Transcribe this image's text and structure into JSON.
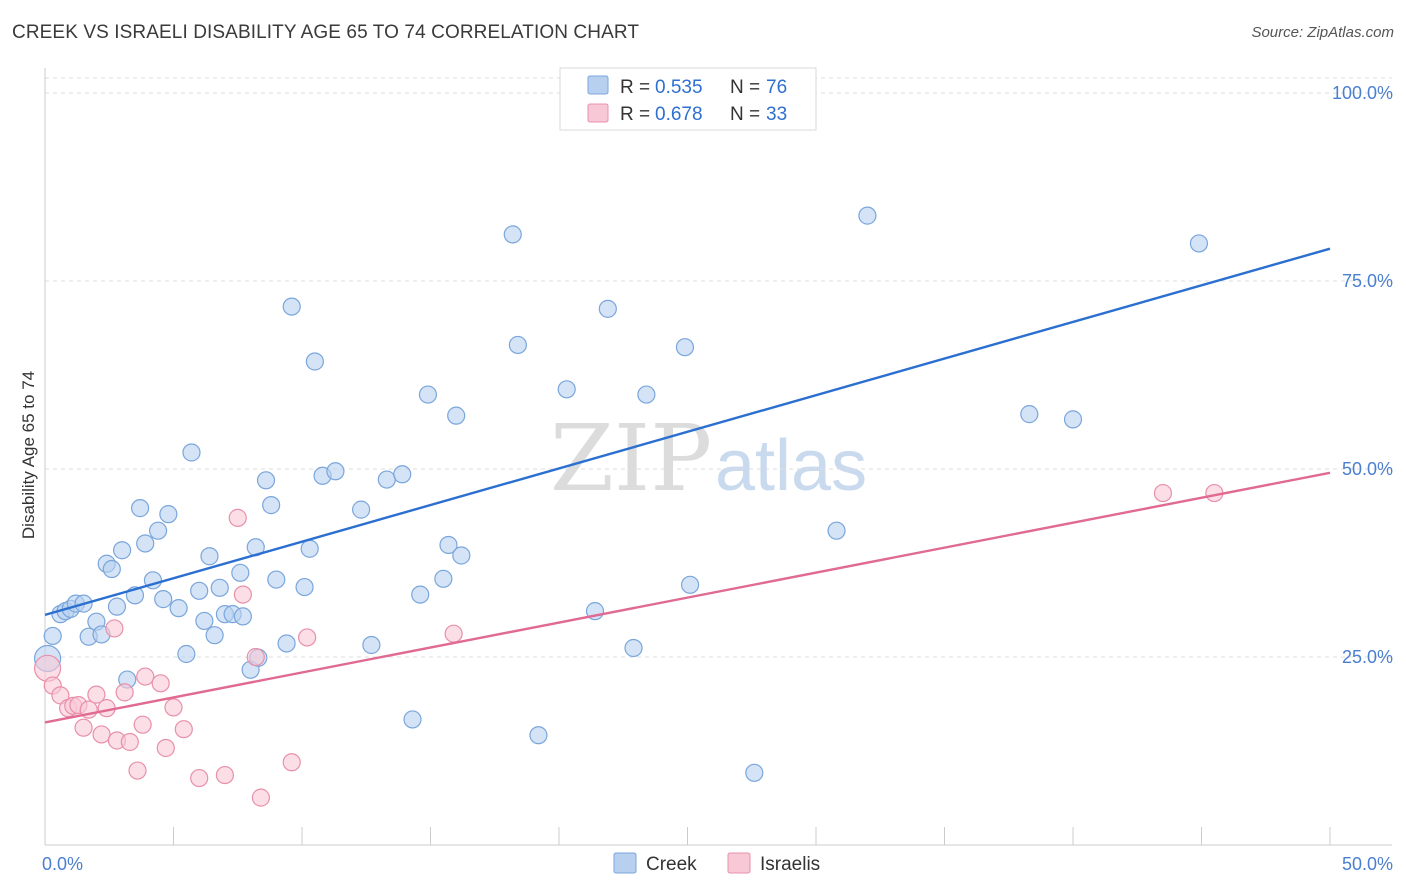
{
  "title": "CREEK VS ISRAELI DISABILITY AGE 65 TO 74 CORRELATION CHART",
  "source": "Source: ZipAtlas.com",
  "watermark": {
    "part1": "ZIP",
    "part2": "atlas"
  },
  "colors": {
    "creek_fill": "#b8d0f0",
    "creek_stroke": "#7aa6dc",
    "creek_line": "#2b6fd0",
    "israelis_fill": "#f8c8d6",
    "israelis_stroke": "#e890aa",
    "israelis_line": "#e06a92",
    "grid": "#dddddd",
    "tick_text": "#4a7fd0"
  },
  "legend": {
    "rows": [
      {
        "r_label": "R = ",
        "r_value": "0.535",
        "n_label": "N = ",
        "n_value": "76",
        "series": "Creek"
      },
      {
        "r_label": "R = ",
        "r_value": "0.678",
        "n_label": "N = ",
        "n_value": "33",
        "series": "Israelis"
      }
    ]
  },
  "chart_data": {
    "type": "scatter",
    "title": "CREEK VS ISRAELI DISABILITY AGE 65 TO 74 CORRELATION CHART",
    "xlabel": "",
    "ylabel": "Disability Age 65 to 74",
    "xlim": [
      0,
      50
    ],
    "ylim": [
      0,
      102
    ],
    "x_tick_labels": [
      "0.0%",
      "50.0%"
    ],
    "y_ticks": [
      25,
      50,
      75,
      100
    ],
    "y_tick_labels": [
      "25.0%",
      "50.0%",
      "75.0%",
      "100.0%"
    ],
    "legend_position": "top-center",
    "bottom_legend": [
      "Creek",
      "Israelis"
    ],
    "series": [
      {
        "name": "Creek",
        "trendline": {
          "x": [
            0,
            50
          ],
          "y": [
            30.6,
            79.3
          ]
        },
        "points": [
          [
            0.1,
            24.8
          ],
          [
            0.3,
            27.8
          ],
          [
            0.6,
            30.7
          ],
          [
            0.8,
            31.1
          ],
          [
            1.0,
            31.4
          ],
          [
            1.2,
            32.1
          ],
          [
            1.5,
            32.1
          ],
          [
            1.7,
            27.7
          ],
          [
            2.0,
            29.7
          ],
          [
            2.2,
            28.0
          ],
          [
            2.4,
            37.4
          ],
          [
            2.6,
            36.7
          ],
          [
            2.8,
            31.7
          ],
          [
            3.0,
            39.2
          ],
          [
            3.2,
            22.0
          ],
          [
            3.5,
            33.2
          ],
          [
            3.7,
            44.8
          ],
          [
            3.9,
            40.1
          ],
          [
            4.2,
            35.2
          ],
          [
            4.4,
            41.8
          ],
          [
            4.6,
            32.7
          ],
          [
            4.8,
            44.0
          ],
          [
            5.2,
            31.5
          ],
          [
            5.5,
            25.4
          ],
          [
            5.7,
            52.2
          ],
          [
            6.0,
            33.8
          ],
          [
            6.2,
            29.8
          ],
          [
            6.4,
            38.4
          ],
          [
            6.6,
            27.9
          ],
          [
            6.8,
            34.2
          ],
          [
            7.0,
            30.7
          ],
          [
            7.3,
            30.7
          ],
          [
            7.6,
            36.2
          ],
          [
            7.7,
            30.4
          ],
          [
            8.0,
            23.3
          ],
          [
            8.2,
            39.6
          ],
          [
            8.3,
            24.9
          ],
          [
            8.6,
            48.5
          ],
          [
            8.8,
            45.2
          ],
          [
            9.0,
            35.3
          ],
          [
            9.4,
            26.8
          ],
          [
            9.6,
            71.6
          ],
          [
            10.1,
            34.3
          ],
          [
            10.3,
            39.4
          ],
          [
            10.5,
            64.3
          ],
          [
            10.8,
            49.1
          ],
          [
            11.3,
            49.7
          ],
          [
            12.3,
            44.6
          ],
          [
            12.7,
            26.6
          ],
          [
            13.3,
            48.6
          ],
          [
            13.9,
            49.3
          ],
          [
            14.3,
            16.7
          ],
          [
            14.6,
            33.3
          ],
          [
            14.9,
            59.9
          ],
          [
            15.5,
            35.4
          ],
          [
            15.7,
            39.9
          ],
          [
            16.0,
            57.1
          ],
          [
            16.2,
            38.5
          ],
          [
            18.2,
            81.2
          ],
          [
            18.4,
            66.5
          ],
          [
            19.2,
            14.6
          ],
          [
            20.3,
            60.6
          ],
          [
            21.4,
            31.1
          ],
          [
            21.9,
            71.3
          ],
          [
            22.9,
            26.2
          ],
          [
            23.0,
            100.0
          ],
          [
            23.4,
            59.9
          ],
          [
            24.9,
            66.2
          ],
          [
            25.1,
            34.6
          ],
          [
            27.6,
            9.6
          ],
          [
            29.0,
            100.0
          ],
          [
            30.8,
            41.8
          ],
          [
            32.0,
            83.7
          ],
          [
            38.3,
            57.3
          ],
          [
            40.0,
            56.6
          ],
          [
            44.9,
            80.0
          ]
        ]
      },
      {
        "name": "Israelis",
        "trendline": {
          "x": [
            0,
            50
          ],
          "y": [
            16.3,
            49.5
          ]
        },
        "points": [
          [
            0.1,
            23.5
          ],
          [
            0.3,
            21.2
          ],
          [
            0.6,
            19.9
          ],
          [
            0.9,
            18.2
          ],
          [
            1.1,
            18.5
          ],
          [
            1.3,
            18.6
          ],
          [
            1.5,
            15.6
          ],
          [
            1.7,
            18.0
          ],
          [
            2.0,
            20.0
          ],
          [
            2.2,
            14.7
          ],
          [
            2.4,
            18.2
          ],
          [
            2.7,
            28.8
          ],
          [
            2.8,
            13.9
          ],
          [
            3.1,
            20.3
          ],
          [
            3.3,
            13.7
          ],
          [
            3.6,
            9.9
          ],
          [
            3.8,
            16.0
          ],
          [
            3.9,
            22.4
          ],
          [
            4.5,
            21.5
          ],
          [
            4.7,
            12.9
          ],
          [
            5.0,
            18.3
          ],
          [
            5.4,
            15.4
          ],
          [
            6.0,
            8.9
          ],
          [
            7.0,
            9.3
          ],
          [
            7.5,
            43.5
          ],
          [
            7.7,
            33.3
          ],
          [
            8.2,
            25.0
          ],
          [
            8.4,
            6.3
          ],
          [
            9.6,
            11.0
          ],
          [
            10.2,
            27.6
          ],
          [
            15.9,
            28.1
          ],
          [
            43.5,
            46.8
          ],
          [
            45.5,
            46.8
          ]
        ]
      }
    ]
  }
}
